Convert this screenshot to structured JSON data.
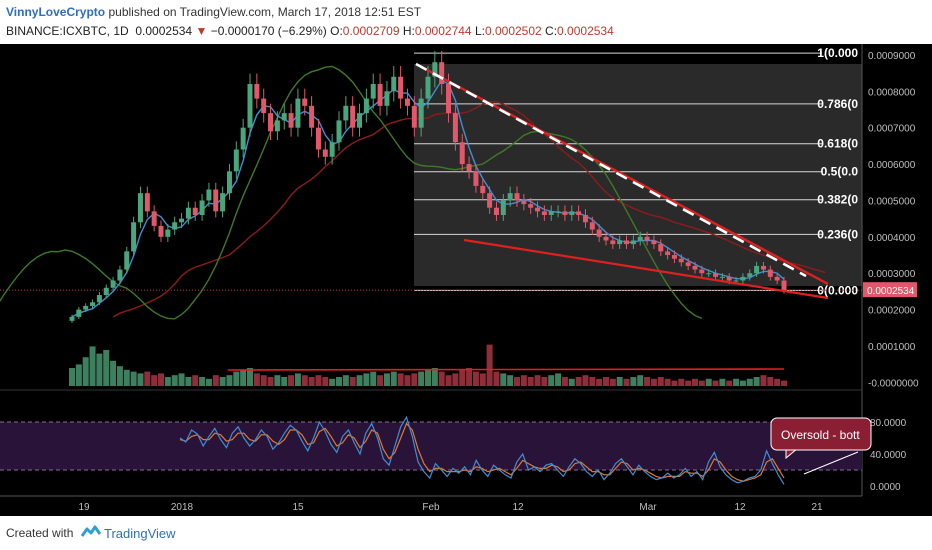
{
  "header": {
    "author": "VinnyLoveCrypto",
    "published": "published on TradingView.com, March 17, 2018 12:51 EST",
    "symbol": "BINANCE:ICXBTC, 1D",
    "last": "0.0002534",
    "arrow": "▼",
    "change": "−0.0000170 (−6.29%)",
    "o_label": "O:",
    "o_value": "0.0002709",
    "h_label": "H:",
    "h_value": "0.0002744",
    "l_label": "L:",
    "l_value": "0.0002502",
    "c_label": "C:",
    "c_value": "0.0002534"
  },
  "footer": {
    "created_with": "Created with",
    "brand": "TradingView"
  },
  "chart_data": {
    "type": "candlestick",
    "price_axis_ticks": [
      "0.0009000",
      "0.0008000",
      "0.0007000",
      "0.0006000",
      "0.0005000",
      "0.0004000",
      "0.0003000",
      "0.0002000",
      "0.0001000",
      "-0.0000000"
    ],
    "price_ylim": [
      -1e-05,
      0.00093
    ],
    "x_ticks": [
      "19",
      "2018",
      "15",
      "Feb",
      "12",
      "Mar",
      "12",
      "21"
    ],
    "last_price_label": "0.0002534",
    "fib_levels": [
      {
        "label": "1(0.000",
        "ratio": 1
      },
      {
        "label": "0.786(0",
        "ratio": 0.786
      },
      {
        "label": "0.618(0",
        "ratio": 0.618
      },
      {
        "label": "0.5(0.0",
        "ratio": 0.5
      },
      {
        "label": "0.382(0",
        "ratio": 0.382
      },
      {
        "label": "0.236(0",
        "ratio": 0.236
      },
      {
        "label": "0(0.000",
        "ratio": 0
      }
    ],
    "fib_range": [
      0.000253,
      0.000905
    ],
    "close": [
      0.00018,
      0.0002,
      0.00021,
      0.00022,
      0.00024,
      0.00026,
      0.00028,
      0.00031,
      0.00036,
      0.00044,
      0.00052,
      0.00047,
      0.00043,
      0.0004,
      0.00042,
      0.00044,
      0.00045,
      0.00048,
      0.00046,
      0.0005,
      0.00053,
      0.00047,
      0.00052,
      0.00058,
      0.00064,
      0.0007,
      0.00082,
      0.00078,
      0.00074,
      0.00069,
      0.00072,
      0.00074,
      0.0007,
      0.00078,
      0.00076,
      0.0007,
      0.00064,
      0.00062,
      0.00066,
      0.00072,
      0.00076,
      0.0007,
      0.00074,
      0.00078,
      0.00082,
      0.00076,
      0.0008,
      0.00084,
      0.00078,
      0.00076,
      0.0007,
      0.00078,
      0.00084,
      0.00088,
      0.00082,
      0.00074,
      0.00066,
      0.0006,
      0.00058,
      0.00054,
      0.00052,
      0.00048,
      0.00046,
      0.0005,
      0.00052,
      0.0005,
      0.00049,
      0.00048,
      0.00047,
      0.00046,
      0.00047,
      0.00047,
      0.00046,
      0.00047,
      0.00046,
      0.00044,
      0.00042,
      0.0004,
      0.00039,
      0.00038,
      0.00039,
      0.00038,
      0.00039,
      0.0004,
      0.00039,
      0.00038,
      0.00036,
      0.00035,
      0.00034,
      0.00033,
      0.00032,
      0.00031,
      0.0003,
      0.0003,
      0.00029,
      0.00029,
      0.00028,
      0.00028,
      0.00029,
      0.0003,
      0.00032,
      0.00031,
      0.00029,
      0.00028,
      0.000253
    ],
    "volume": [
      1.0,
      1.2,
      1.6,
      2.2,
      1.8,
      2.0,
      1.4,
      1.1,
      0.9,
      0.8,
      0.7,
      0.8,
      0.6,
      0.7,
      0.5,
      0.6,
      0.7,
      0.5,
      0.6,
      0.5,
      0.4,
      0.6,
      0.5,
      0.6,
      0.8,
      0.9,
      1.0,
      0.7,
      0.6,
      0.5,
      0.6,
      0.5,
      0.6,
      0.7,
      0.6,
      0.5,
      0.6,
      0.5,
      0.4,
      0.5,
      0.6,
      0.5,
      0.6,
      0.7,
      0.8,
      0.6,
      0.7,
      0.8,
      0.7,
      0.6,
      0.7,
      0.8,
      0.9,
      1.0,
      0.8,
      0.6,
      0.7,
      0.9,
      1.0,
      0.8,
      0.7,
      2.3,
      0.8,
      0.7,
      0.6,
      0.5,
      0.6,
      0.5,
      0.6,
      0.5,
      0.6,
      0.7,
      0.5,
      0.4,
      0.5,
      0.6,
      0.5,
      0.4,
      0.5,
      0.4,
      0.5,
      0.4,
      0.5,
      0.6,
      0.5,
      0.4,
      0.5,
      0.4,
      0.3,
      0.4,
      0.3,
      0.4,
      0.3,
      0.4,
      0.3,
      0.4,
      0.3,
      0.4,
      0.3,
      0.4,
      0.5,
      0.6,
      0.5,
      0.4,
      0.3
    ],
    "rsi_axis_ticks": [
      "80.0000",
      "40.0000",
      "0.0000"
    ],
    "rsi_band": [
      20,
      80
    ],
    "stoch_k": [
      60,
      55,
      70,
      65,
      50,
      62,
      72,
      58,
      48,
      66,
      74,
      60,
      50,
      58,
      70,
      62,
      46,
      54,
      66,
      76,
      70,
      56,
      44,
      60,
      80,
      68,
      52,
      42,
      62,
      70,
      54,
      40,
      66,
      78,
      60,
      34,
      26,
      50,
      74,
      86,
      62,
      30,
      18,
      10,
      28,
      20,
      12,
      22,
      16,
      24,
      14,
      32,
      20,
      12,
      26,
      20,
      14,
      10,
      30,
      40,
      20,
      24,
      18,
      26,
      28,
      20,
      12,
      24,
      34,
      28,
      18,
      12,
      20,
      8,
      16,
      28,
      34,
      24,
      14,
      26,
      18,
      12,
      8,
      10,
      16,
      10,
      14,
      22,
      12,
      18,
      8,
      30,
      42,
      24,
      14,
      8,
      4,
      6,
      10,
      12,
      20,
      44,
      28,
      14,
      2
    ],
    "stoch_d": [
      58,
      56,
      62,
      64,
      58,
      58,
      66,
      64,
      56,
      58,
      66,
      66,
      58,
      56,
      64,
      64,
      56,
      52,
      58,
      70,
      70,
      64,
      52,
      54,
      68,
      72,
      62,
      50,
      54,
      64,
      60,
      48,
      56,
      70,
      66,
      46,
      34,
      42,
      60,
      78,
      70,
      46,
      28,
      18,
      22,
      22,
      18,
      18,
      18,
      20,
      18,
      24,
      22,
      18,
      20,
      22,
      18,
      14,
      22,
      32,
      28,
      24,
      22,
      22,
      26,
      24,
      18,
      20,
      28,
      30,
      24,
      18,
      18,
      14,
      14,
      22,
      30,
      28,
      20,
      22,
      20,
      16,
      12,
      10,
      12,
      12,
      12,
      18,
      16,
      16,
      12,
      20,
      34,
      30,
      20,
      12,
      8,
      6,
      8,
      10,
      14,
      30,
      34,
      22,
      10
    ],
    "annotation": "Oversold - bott"
  }
}
